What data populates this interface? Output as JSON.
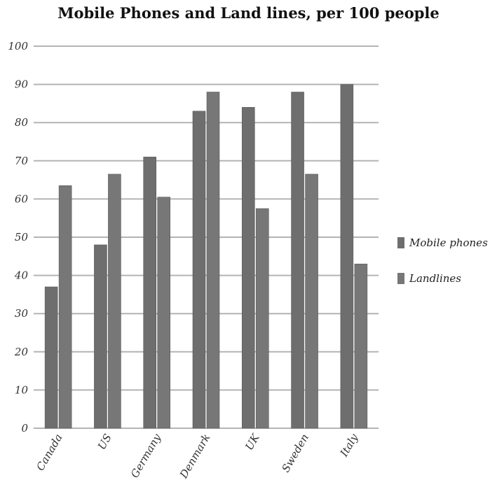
{
  "chart_data": {
    "type": "bar",
    "title": "Mobile Phones and Land lines, per 100 people",
    "categories": [
      "Canada",
      "US",
      "Germany",
      "Denmark",
      "UK",
      "Sweden",
      "Italy"
    ],
    "series": [
      {
        "name": "Mobile phones",
        "values": [
          37,
          48,
          71,
          83,
          84,
          88,
          90
        ]
      },
      {
        "name": "Landlines",
        "values": [
          63.5,
          66.5,
          60.5,
          88,
          57.5,
          66.5,
          43
        ]
      }
    ],
    "yticks": [
      "0",
      "10",
      "20",
      "30",
      "40",
      "50",
      "60",
      "70",
      "80",
      "90",
      "100"
    ],
    "ylim": [
      0,
      100
    ],
    "grid": true,
    "legend_position": "right",
    "colors": {
      "Mobile phones": "#6e6e6e",
      "Landlines": "#777777",
      "grid": "#b4b4b4"
    }
  }
}
